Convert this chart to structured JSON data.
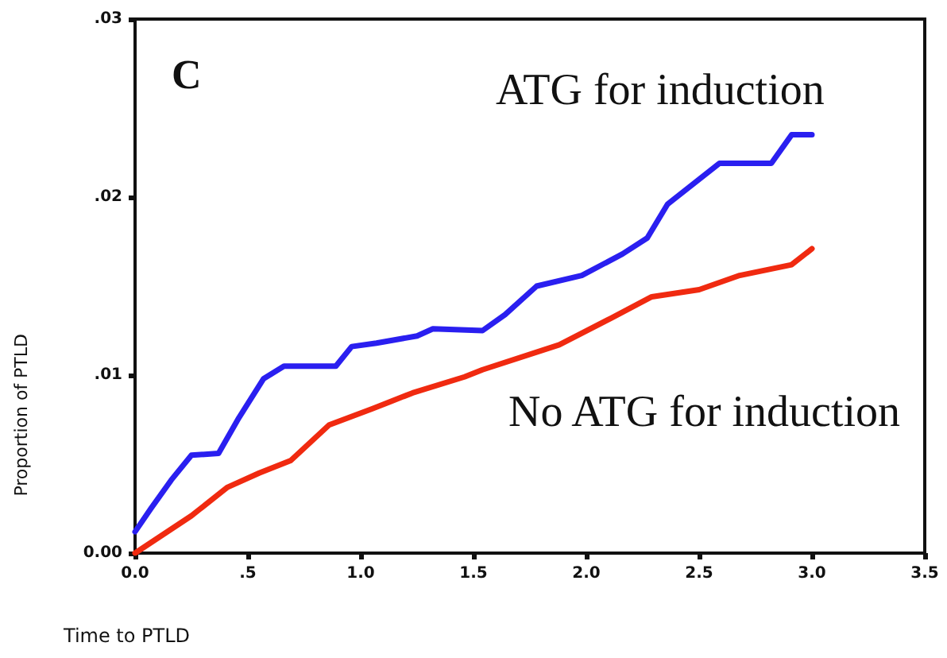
{
  "chart_data": {
    "type": "line",
    "xlabel": "Time to PTLD",
    "ylabel": "Proportion of PTLD",
    "annotations": [
      "C"
    ],
    "xlim": [
      0,
      3.5
    ],
    "xticks": [
      {
        "value": 0,
        "label": "0.0"
      },
      {
        "value": 0.5,
        "label": ".5"
      },
      {
        "value": 1,
        "label": "1.0"
      },
      {
        "value": 1.5,
        "label": "1.5"
      },
      {
        "value": 2,
        "label": "2.0"
      },
      {
        "value": 2.5,
        "label": "2.5"
      },
      {
        "value": 3,
        "label": "3.0"
      },
      {
        "value": 3.5,
        "label": "3.5"
      }
    ],
    "ylim": [
      0,
      0.03
    ],
    "yticks": [
      {
        "value": 0,
        "label": "0.00"
      },
      {
        "value": 0.01,
        "label": ".01"
      },
      {
        "value": 0.02,
        "label": ".02"
      },
      {
        "value": 0.03,
        "label": ".03"
      }
    ],
    "grid": false,
    "legend": false,
    "marker": "none",
    "line_style": "solid",
    "series": [
      {
        "name": "ATG for induction",
        "color": "#2a1ff0",
        "x": [
          0,
          0.07,
          0.16,
          0.25,
          0.37,
          0.46,
          0.57,
          0.66,
          0.89,
          0.96,
          1.07,
          1.25,
          1.32,
          1.54,
          1.64,
          1.78,
          1.98,
          2.16,
          2.27,
          2.36,
          2.59,
          2.82,
          2.91,
          3.0
        ],
        "values": [
          0.0012,
          0.0025,
          0.0041,
          0.0055,
          0.0056,
          0.0076,
          0.0098,
          0.0105,
          0.0105,
          0.0116,
          0.0118,
          0.0122,
          0.0126,
          0.0125,
          0.0134,
          0.015,
          0.0156,
          0.0168,
          0.0177,
          0.0196,
          0.0219,
          0.0219,
          0.0235,
          0.0235
        ]
      },
      {
        "name": "No ATG for induction",
        "color": "#f02a10",
        "x": [
          0,
          0.25,
          0.41,
          0.55,
          0.69,
          0.86,
          1.05,
          1.23,
          1.46,
          1.54,
          1.88,
          2.11,
          2.29,
          2.5,
          2.68,
          2.91,
          3.0
        ],
        "values": [
          0,
          0.0021,
          0.0037,
          0.0045,
          0.0052,
          0.0072,
          0.0081,
          0.009,
          0.0099,
          0.0103,
          0.0117,
          0.0132,
          0.0144,
          0.0148,
          0.0156,
          0.0162,
          0.0171
        ]
      }
    ]
  }
}
